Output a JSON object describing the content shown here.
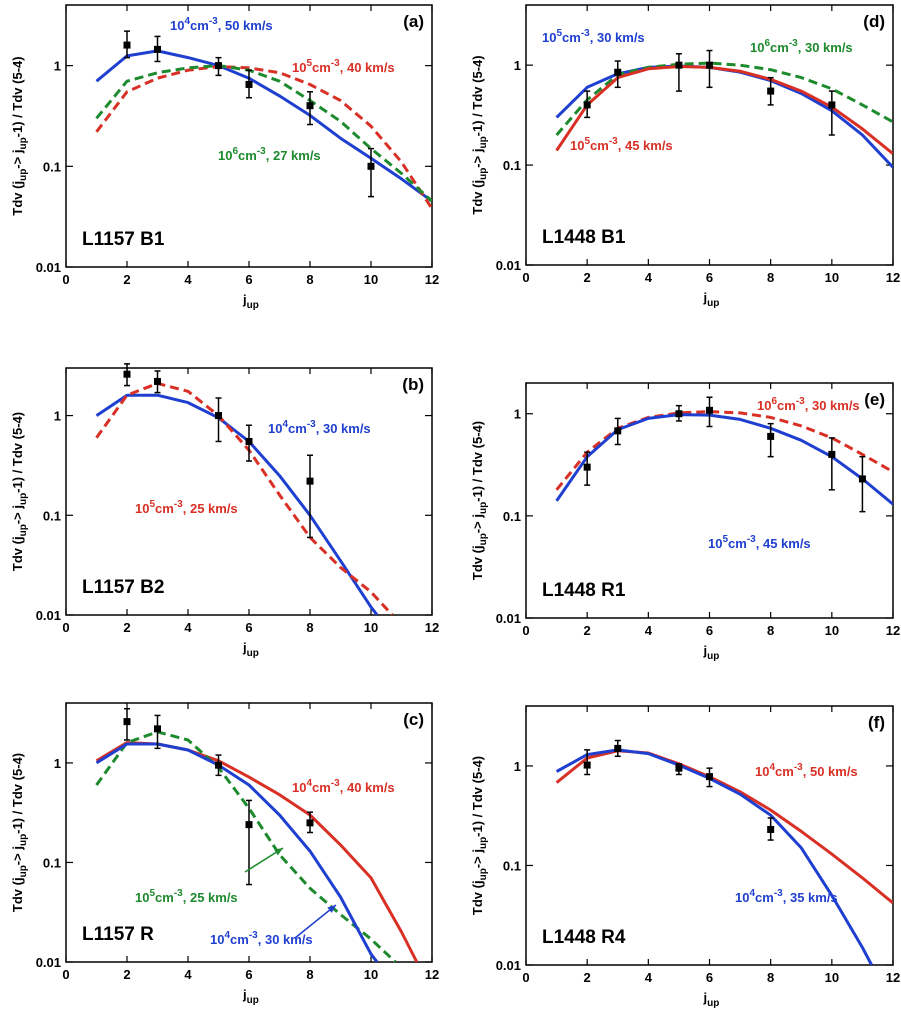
{
  "chart_data": [
    {
      "type": "line",
      "y_scale": "log",
      "panel_label": "(a)",
      "source": "L1157 B1",
      "xlabel": [
        "j",
        "up"
      ],
      "ylabel": [
        "Tdv (j",
        "up",
        "-> j",
        "up",
        "-1) / Tdv (5-4)"
      ],
      "xlim": [
        0,
        12
      ],
      "xticks": [
        0,
        2,
        4,
        6,
        8,
        10,
        12
      ],
      "ylim": [
        0.01,
        4
      ],
      "yticks": [
        0.01,
        0.1,
        1
      ],
      "observed": {
        "color": "#000000",
        "x": [
          2,
          3,
          5,
          6,
          8,
          10
        ],
        "values": [
          1.6,
          1.45,
          1.0,
          0.65,
          0.4,
          0.1
        ],
        "lower": [
          1.2,
          1.1,
          0.8,
          0.48,
          0.26,
          0.05
        ],
        "upper": [
          2.2,
          1.95,
          1.2,
          0.9,
          0.55,
          0.15
        ]
      },
      "series": [
        {
          "label": [
            "10",
            "4",
            "cm",
            "-3",
            ", 50 km/s"
          ],
          "color": "#1f3fd0",
          "dashed": false,
          "x": [
            1,
            2,
            3,
            4,
            5,
            6,
            7,
            8,
            9,
            10,
            11,
            12
          ],
          "values": [
            0.7,
            1.25,
            1.4,
            1.2,
            1.0,
            0.75,
            0.5,
            0.32,
            0.19,
            0.12,
            0.075,
            0.045
          ]
        },
        {
          "label": [
            "10",
            "5",
            "cm",
            "-3",
            ", 40 km/s"
          ],
          "color": "#d93025",
          "dashed": true,
          "x": [
            1,
            2,
            3,
            4,
            5,
            6,
            7,
            8,
            9,
            10,
            11,
            12
          ],
          "values": [
            0.22,
            0.55,
            0.75,
            0.9,
            0.98,
            0.95,
            0.85,
            0.65,
            0.45,
            0.25,
            0.11,
            0.038
          ]
        },
        {
          "label": [
            "10",
            "6",
            "cm",
            "-3",
            ", 27 km/s"
          ],
          "color": "#1e8a2e",
          "dashed": true,
          "x": [
            1,
            2,
            3,
            4,
            5,
            6,
            7,
            8,
            9,
            10,
            11,
            12
          ],
          "values": [
            0.3,
            0.7,
            0.85,
            0.95,
            1.0,
            0.9,
            0.7,
            0.45,
            0.28,
            0.15,
            0.085,
            0.045
          ]
        }
      ]
    },
    {
      "type": "line",
      "y_scale": "log",
      "panel_label": "(b)",
      "source": "L1157 B2",
      "xlabel": [
        "j",
        "up"
      ],
      "ylabel": [
        "Tdv (j",
        "up",
        "-> j",
        "up",
        "-1) / Tdv (5-4)"
      ],
      "xlim": [
        0,
        12
      ],
      "xticks": [
        0,
        2,
        4,
        6,
        8,
        10,
        12
      ],
      "ylim": [
        0.01,
        3
      ],
      "yticks": [
        0.01,
        0.1,
        1
      ],
      "observed": {
        "color": "#000000",
        "x": [
          2,
          3,
          5,
          6,
          8
        ],
        "values": [
          2.6,
          2.2,
          1.0,
          0.55,
          0.22
        ],
        "lower": [
          2.0,
          1.7,
          0.55,
          0.35,
          0.06
        ],
        "upper": [
          3.3,
          2.8,
          1.5,
          0.8,
          0.4
        ]
      },
      "series": [
        {
          "label": [
            "10",
            "4",
            "cm",
            "-3",
            ", 30 km/s"
          ],
          "color": "#1f3fd0",
          "dashed": false,
          "x": [
            1,
            2,
            3,
            4,
            5,
            6,
            7,
            8,
            9,
            10,
            10.2
          ],
          "values": [
            1.0,
            1.6,
            1.6,
            1.35,
            0.95,
            0.55,
            0.25,
            0.1,
            0.035,
            0.012,
            0.01
          ]
        },
        {
          "label": [
            "10",
            "5",
            "cm",
            "-3",
            ", 25 km/s"
          ],
          "color": "#d93025",
          "dashed": true,
          "x": [
            1,
            2,
            3,
            4,
            5,
            6,
            7,
            8,
            9,
            10,
            10.7
          ],
          "values": [
            0.6,
            1.6,
            2.1,
            1.75,
            1.0,
            0.45,
            0.16,
            0.06,
            0.03,
            0.017,
            0.01
          ]
        }
      ]
    },
    {
      "type": "line",
      "y_scale": "log",
      "panel_label": "(c)",
      "source": "L1157 R",
      "xlabel": [
        "j",
        "up"
      ],
      "ylabel": [
        "Tdv (j",
        "up",
        "-> j",
        "up",
        "-1) / Tdv (5-4)"
      ],
      "xlim": [
        0,
        12
      ],
      "xticks": [
        0,
        2,
        4,
        6,
        8,
        10,
        12
      ],
      "ylim": [
        0.01,
        4
      ],
      "yticks": [
        0.01,
        0.1,
        1
      ],
      "observed": {
        "color": "#000000",
        "x": [
          2,
          3,
          5,
          6,
          8
        ],
        "values": [
          2.6,
          2.2,
          0.95,
          0.24,
          0.25
        ],
        "lower": [
          1.7,
          1.4,
          0.75,
          0.06,
          0.2
        ],
        "upper": [
          3.5,
          3.0,
          1.2,
          0.42,
          0.32
        ]
      },
      "series": [
        {
          "label": [
            "10",
            "4",
            "cm",
            "-3",
            ", 40 km/s"
          ],
          "color": "#d93025",
          "dashed": false,
          "x": [
            1,
            2,
            3,
            4,
            5,
            6,
            7,
            8,
            9,
            10,
            11,
            11.5
          ],
          "values": [
            1.05,
            1.6,
            1.55,
            1.35,
            1.05,
            0.72,
            0.48,
            0.3,
            0.15,
            0.07,
            0.02,
            0.01
          ]
        },
        {
          "label": [
            "10",
            "5",
            "cm",
            "-3",
            ", 25 km/s"
          ],
          "color": "#1e8a2e",
          "dashed": true,
          "x": [
            1,
            2,
            3,
            4,
            5,
            6,
            7,
            8,
            9,
            10,
            10.8
          ],
          "values": [
            0.6,
            1.6,
            2.05,
            1.7,
            0.9,
            0.35,
            0.12,
            0.055,
            0.03,
            0.017,
            0.01
          ]
        },
        {
          "label": [
            "10",
            "4",
            "cm",
            "-3",
            ", 30 km/s"
          ],
          "color": "#1f3fd0",
          "dashed": false,
          "x": [
            1,
            2,
            3,
            4,
            5,
            6,
            7,
            8,
            9,
            10,
            10.2
          ],
          "values": [
            1.0,
            1.55,
            1.55,
            1.35,
            0.95,
            0.6,
            0.3,
            0.13,
            0.045,
            0.012,
            0.01
          ]
        }
      ]
    },
    {
      "type": "line",
      "y_scale": "log",
      "panel_label": "(d)",
      "source": "L1448 B1",
      "xlabel": [
        "j",
        "up"
      ],
      "ylabel": [
        "Tdv (j",
        "up",
        "-> j",
        "up",
        "-1) / Tdv (5-4)"
      ],
      "xlim": [
        0,
        12
      ],
      "xticks": [
        0,
        2,
        4,
        6,
        8,
        10,
        12
      ],
      "ylim": [
        0.01,
        4
      ],
      "yticks": [
        0.01,
        0.1,
        1
      ],
      "observed": {
        "color": "#000000",
        "x": [
          2,
          3,
          5,
          6,
          8,
          10
        ],
        "values": [
          0.4,
          0.85,
          1.0,
          1.0,
          0.55,
          0.4
        ],
        "lower": [
          0.3,
          0.6,
          0.55,
          0.6,
          0.4,
          0.2
        ],
        "upper": [
          0.55,
          1.1,
          1.3,
          1.4,
          0.75,
          0.55
        ]
      },
      "series": [
        {
          "label": [
            "10",
            "5",
            "cm",
            "-3",
            ", 30 km/s"
          ],
          "color": "#1f3fd0",
          "dashed": false,
          "x": [
            1,
            2,
            3,
            4,
            5,
            6,
            7,
            8,
            9,
            10,
            11,
            12
          ],
          "values": [
            0.3,
            0.6,
            0.82,
            0.95,
            0.98,
            0.95,
            0.85,
            0.7,
            0.52,
            0.35,
            0.2,
            0.095
          ]
        },
        {
          "label": [
            "10",
            "6",
            "cm",
            "-3",
            ", 30 km/s"
          ],
          "color": "#1e8a2e",
          "dashed": true,
          "x": [
            1,
            2,
            3,
            4,
            5,
            6,
            7,
            8,
            9,
            10,
            11,
            12
          ],
          "values": [
            0.2,
            0.45,
            0.8,
            0.95,
            1.02,
            1.05,
            1.0,
            0.9,
            0.75,
            0.58,
            0.4,
            0.27
          ]
        },
        {
          "label": [
            "10",
            "5",
            "cm",
            "-3",
            ", 45 km/s"
          ],
          "color": "#d93025",
          "dashed": false,
          "x": [
            1,
            2,
            3,
            4,
            5,
            6,
            7,
            8,
            9,
            10,
            11,
            12
          ],
          "values": [
            0.14,
            0.4,
            0.75,
            0.92,
            0.97,
            0.95,
            0.87,
            0.72,
            0.55,
            0.38,
            0.23,
            0.13
          ]
        }
      ]
    },
    {
      "type": "line",
      "y_scale": "log",
      "panel_label": "(e)",
      "source": "L1448 R1",
      "xlabel": [
        "j",
        "up"
      ],
      "ylabel": [
        "Tdv (j",
        "up",
        "-> j",
        "up",
        "-1) / Tdv (5-4)"
      ],
      "xlim": [
        0,
        12
      ],
      "xticks": [
        0,
        2,
        4,
        6,
        8,
        10,
        12
      ],
      "ylim": [
        0.01,
        2
      ],
      "yticks": [
        0.01,
        0.1,
        1
      ],
      "observed": {
        "color": "#000000",
        "x": [
          2,
          3,
          5,
          6,
          8,
          10,
          11
        ],
        "values": [
          0.3,
          0.68,
          1.0,
          1.08,
          0.6,
          0.4,
          0.23
        ],
        "lower": [
          0.2,
          0.5,
          0.85,
          0.75,
          0.38,
          0.18,
          0.11
        ],
        "upper": [
          0.42,
          0.9,
          1.2,
          1.45,
          0.8,
          0.58,
          0.38
        ]
      },
      "series": [
        {
          "label": [
            "10",
            "6",
            "cm",
            "-3",
            ", 30 km/s"
          ],
          "color": "#d93025",
          "dashed": true,
          "x": [
            1,
            2,
            3,
            4,
            5,
            6,
            7,
            8,
            9,
            10,
            11,
            12
          ],
          "values": [
            0.18,
            0.42,
            0.72,
            0.92,
            1.02,
            1.05,
            1.02,
            0.92,
            0.76,
            0.58,
            0.4,
            0.27
          ]
        },
        {
          "label": [
            "10",
            "5",
            "cm",
            "-3",
            ", 45 km/s"
          ],
          "color": "#1f3fd0",
          "dashed": false,
          "x": [
            1,
            2,
            3,
            4,
            5,
            6,
            7,
            8,
            9,
            10,
            11,
            12
          ],
          "values": [
            0.14,
            0.38,
            0.7,
            0.9,
            0.98,
            0.97,
            0.88,
            0.72,
            0.55,
            0.38,
            0.23,
            0.13
          ]
        }
      ]
    },
    {
      "type": "line",
      "y_scale": "log",
      "panel_label": "(f)",
      "source": "L1448 R4",
      "xlabel": [
        "j",
        "up"
      ],
      "ylabel": [
        "Tdv (j",
        "up",
        "-> j",
        "up",
        "-1) / Tdv (5-4)"
      ],
      "xlim": [
        0,
        12
      ],
      "xticks": [
        0,
        2,
        4,
        6,
        8,
        10,
        12
      ],
      "ylim": [
        0.01,
        4
      ],
      "yticks": [
        0.01,
        0.1,
        1
      ],
      "observed": {
        "color": "#000000",
        "x": [
          2,
          3,
          5,
          6,
          8
        ],
        "values": [
          1.02,
          1.5,
          0.95,
          0.78,
          0.23
        ],
        "lower": [
          0.82,
          1.25,
          0.82,
          0.62,
          0.18
        ],
        "upper": [
          1.45,
          1.8,
          1.05,
          0.95,
          0.3
        ]
      },
      "series": [
        {
          "label": [
            "10",
            "4",
            "cm",
            "-3",
            ", 50 km/s"
          ],
          "color": "#d93025",
          "dashed": false,
          "x": [
            1,
            2,
            3,
            4,
            5,
            6,
            7,
            8,
            9,
            10,
            11,
            12
          ],
          "values": [
            0.68,
            1.2,
            1.42,
            1.35,
            1.05,
            0.78,
            0.55,
            0.36,
            0.22,
            0.13,
            0.075,
            0.042
          ]
        },
        {
          "label": [
            "10",
            "4",
            "cm",
            "-3",
            ", 35 km/s"
          ],
          "color": "#1f3fd0",
          "dashed": false,
          "x": [
            1,
            2,
            3,
            4,
            5,
            6,
            7,
            8,
            9,
            10,
            11,
            11.3
          ],
          "values": [
            0.88,
            1.3,
            1.45,
            1.33,
            1.02,
            0.75,
            0.52,
            0.32,
            0.15,
            0.05,
            0.015,
            0.01
          ]
        }
      ]
    }
  ]
}
